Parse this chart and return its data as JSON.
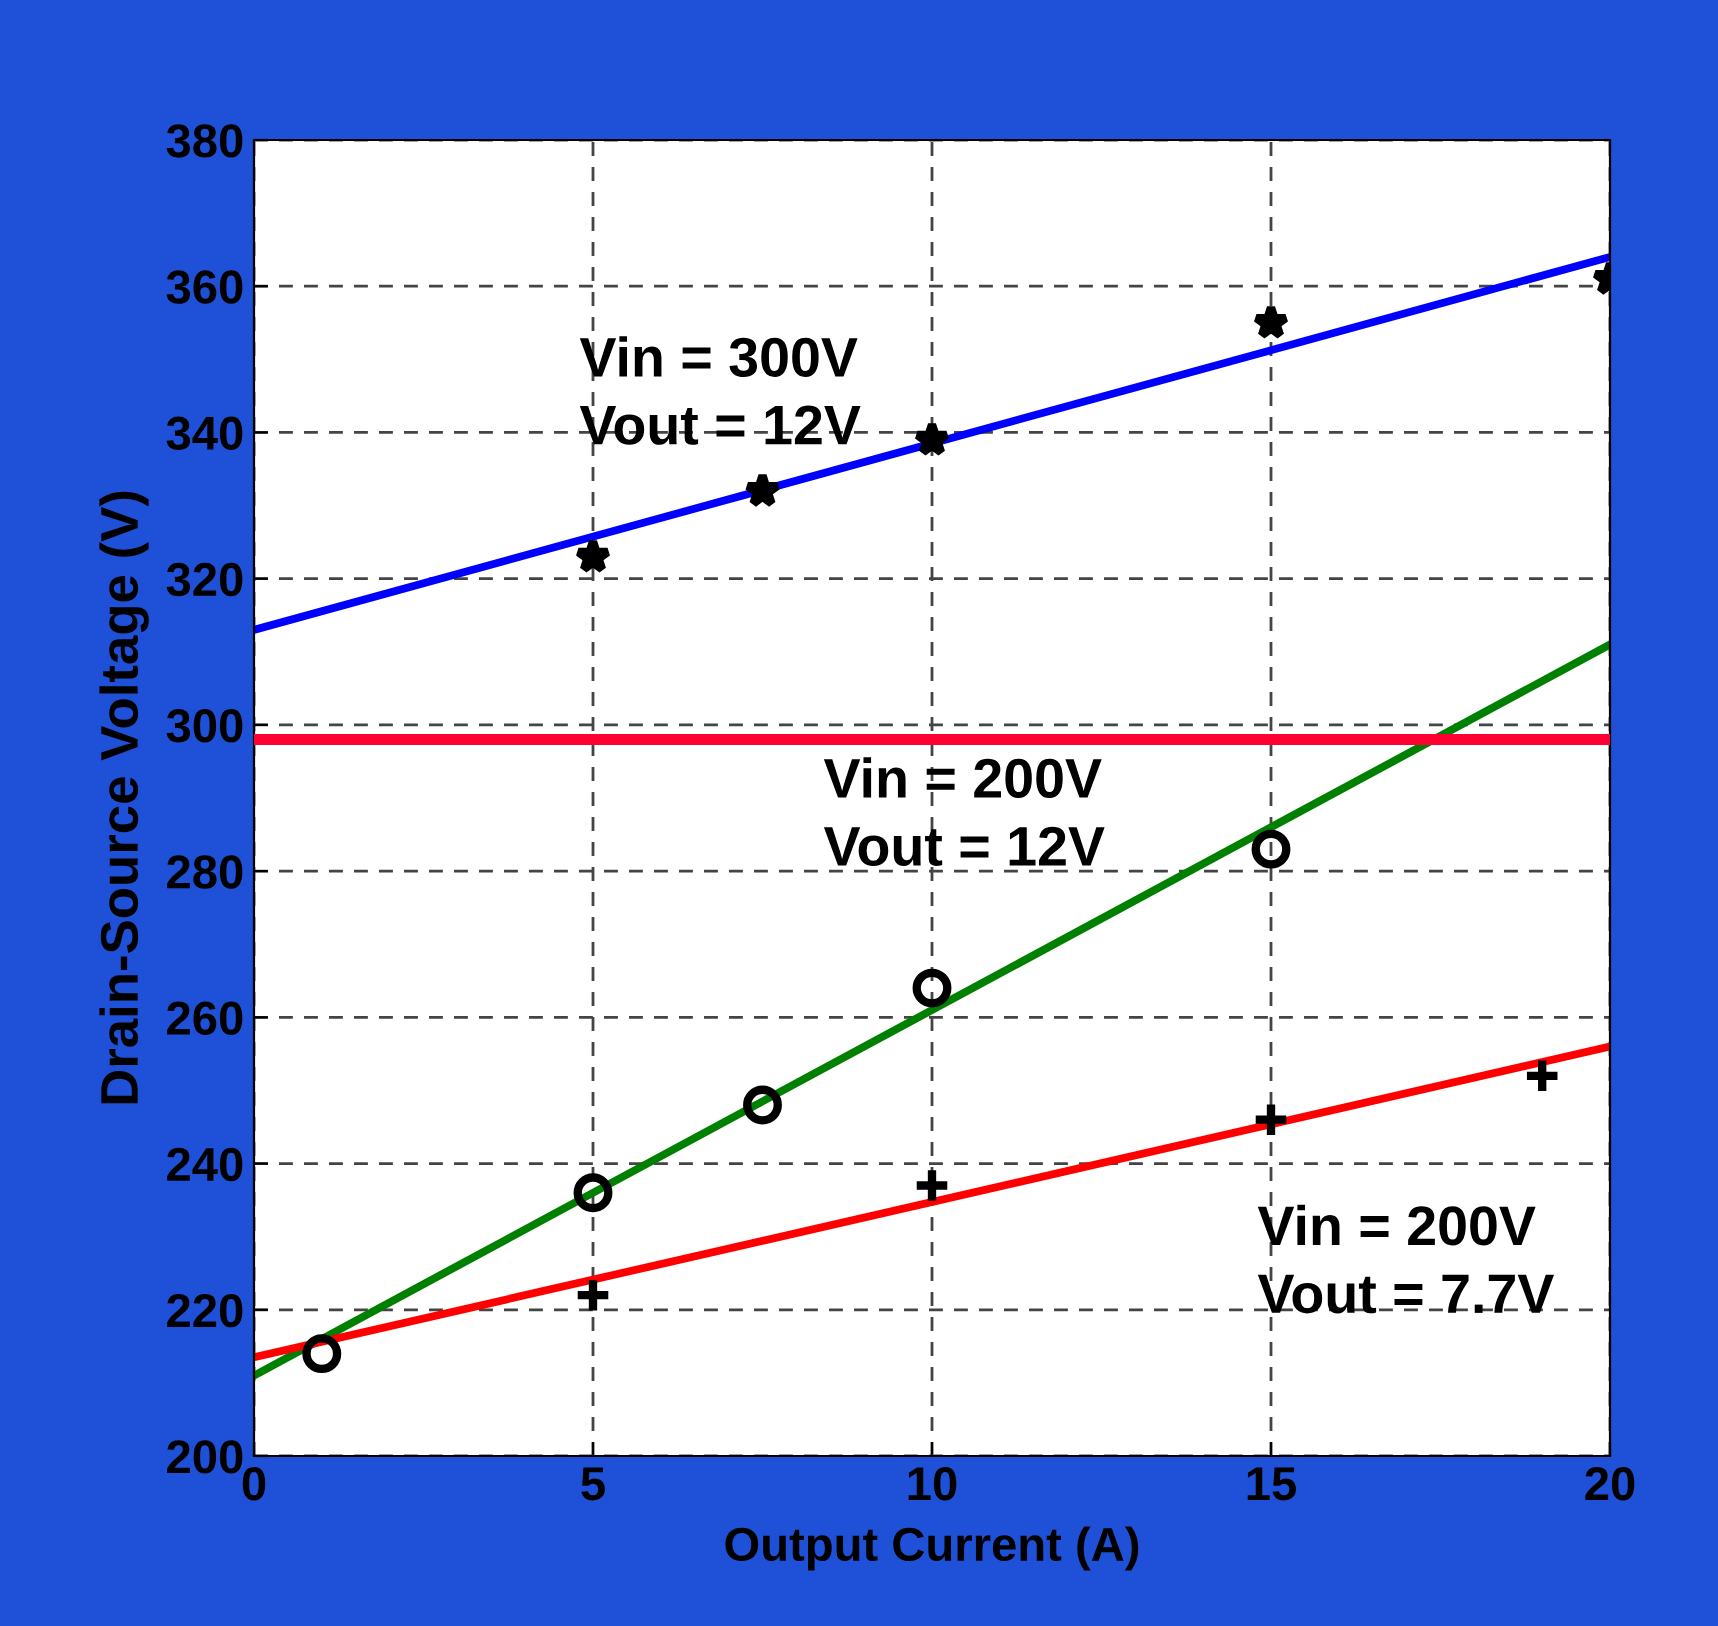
{
  "chart_data": {
    "type": "scatter",
    "xlabel": "Output Current (A)",
    "ylabel": "Drain-Source Voltage (V)",
    "xlim": [
      0,
      20
    ],
    "ylim": [
      200,
      380
    ],
    "xticks": [
      0,
      5,
      10,
      15,
      20
    ],
    "yticks": [
      200,
      220,
      240,
      260,
      280,
      300,
      320,
      340,
      360,
      380
    ],
    "grid": true,
    "legend": false,
    "series": [
      {
        "marker": "star",
        "color": "#000000",
        "x": [
          5,
          7.5,
          10,
          15,
          20
        ],
        "values": [
          323,
          332,
          339,
          355,
          361
        ]
      },
      {
        "marker": "circle",
        "color": "#000000",
        "x": [
          1,
          5,
          7.5,
          10,
          15
        ],
        "values": [
          214,
          236,
          248,
          264,
          283
        ]
      },
      {
        "marker": "cross",
        "color": "#000000",
        "x": [
          5,
          10,
          15,
          19
        ],
        "values": [
          222,
          237,
          246,
          252
        ]
      },
      {
        "type": "line",
        "color": "#0000ff",
        "x": [
          0,
          20
        ],
        "values": [
          313,
          364
        ]
      },
      {
        "type": "line",
        "color": "#008000",
        "x": [
          0,
          20
        ],
        "values": [
          211,
          311
        ]
      },
      {
        "type": "line",
        "color": "#ff0000",
        "x": [
          0,
          20
        ],
        "values": [
          213.5,
          256
        ]
      }
    ],
    "ref_lines": [
      {
        "axis": "y",
        "value": 298,
        "color": "#ff0033"
      }
    ],
    "annotations": [
      "Vin = 300V\nVout = 12V",
      "Vin = 200V\nVout = 12V",
      "Vin = 200V\nVout = 7.7V"
    ]
  }
}
